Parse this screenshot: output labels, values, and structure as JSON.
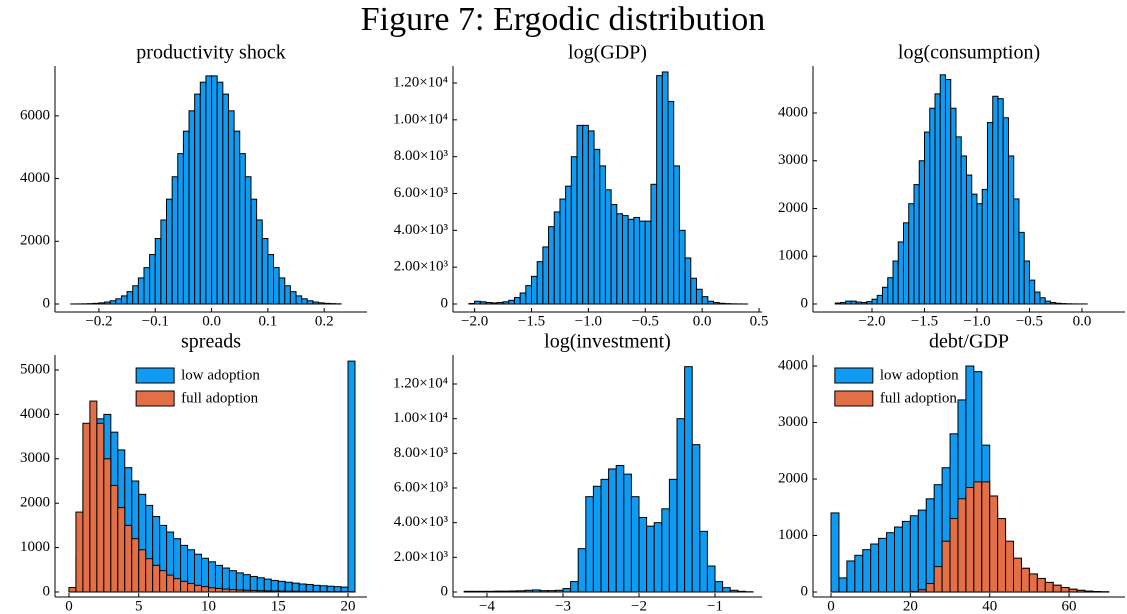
{
  "figure_title": "Figure 7: Ergodic distribution",
  "chart_data": [
    {
      "type": "histogram",
      "title": "productivity shock",
      "color": "#0f9bf2",
      "bins": [
        -0.25,
        -0.24,
        -0.23,
        -0.22,
        -0.21,
        -0.2,
        -0.19,
        -0.18,
        -0.17,
        -0.16,
        -0.15,
        -0.14,
        -0.13,
        -0.12,
        -0.11,
        -0.1,
        -0.09,
        -0.08,
        -0.07,
        -0.06,
        -0.05,
        -0.04,
        -0.03,
        -0.02,
        -0.01,
        0,
        0.01,
        0.02,
        0.03,
        0.04,
        0.05,
        0.06,
        0.07,
        0.08,
        0.09,
        0.1,
        0.11,
        0.12,
        0.13,
        0.14,
        0.15,
        0.16,
        0.17,
        0.18,
        0.19,
        0.2,
        0.21,
        0.22,
        0.23
      ],
      "values": [
        2,
        3,
        6,
        12,
        21,
        37,
        63,
        104,
        166,
        259,
        394,
        581,
        832,
        1161,
        1577,
        2088,
        2680,
        3343,
        4059,
        4796,
        5512,
        6161,
        6694,
        7074,
        7275,
        7275,
        7074,
        6694,
        6161,
        5512,
        4796,
        4059,
        3343,
        2680,
        2088,
        1577,
        1161,
        832,
        581,
        394,
        259,
        166,
        104,
        63,
        37,
        21,
        12,
        6
      ],
      "xlim": [
        -0.278,
        0.276
      ],
      "ylim": [
        -255,
        7590
      ],
      "xticks": [
        {
          "value": -0.2,
          "label": "−0.2"
        },
        {
          "value": -0.1,
          "label": "−0.1"
        },
        {
          "value": 0,
          "label": "0.0"
        },
        0.1,
        0.2
      ],
      "yticks": [
        0,
        2000,
        4000,
        6000
      ]
    },
    {
      "type": "histogram",
      "title": "log(GDP)",
      "color": "#0f9bf2",
      "bins": [
        -2.05,
        -2,
        -1.95,
        -1.9,
        -1.85,
        -1.8,
        -1.75,
        -1.7,
        -1.65,
        -1.6,
        -1.55,
        -1.5,
        -1.45,
        -1.4,
        -1.35,
        -1.3,
        -1.25,
        -1.2,
        -1.15,
        -1.1,
        -1.05,
        -1,
        -0.95,
        -0.9,
        -0.85,
        -0.8,
        -0.75,
        -0.7,
        -0.65,
        -0.6,
        -0.55,
        -0.5,
        -0.45,
        -0.4,
        -0.35,
        -0.3,
        -0.25,
        -0.2,
        -0.15,
        -0.1,
        -0.05,
        0,
        0.05,
        0.1,
        0.15,
        0.2,
        0.25,
        0.3,
        0.35,
        0.4
      ],
      "values": [
        30,
        150,
        120,
        80,
        60,
        80,
        120,
        200,
        350,
        600,
        1000,
        1500,
        2300,
        3100,
        4200,
        5000,
        5700,
        6400,
        8000,
        9700,
        9700,
        9400,
        8400,
        7500,
        6200,
        5400,
        4900,
        4800,
        4600,
        4700,
        4500,
        4500,
        6500,
        12400,
        12600,
        11000,
        7500,
        4000,
        2500,
        1400,
        800,
        400,
        150,
        80,
        40,
        20,
        10,
        5,
        2
      ],
      "xlim": [
        -2.19,
        0.526
      ],
      "ylim": [
        -434,
        12923
      ],
      "xticks": [
        {
          "value": -2,
          "label": "−2.0"
        },
        {
          "value": -1.5,
          "label": "−1.5"
        },
        {
          "value": -1,
          "label": "−1.0"
        },
        {
          "value": -0.5,
          "label": "−0.5"
        },
        {
          "value": 0,
          "label": "0.0"
        },
        0.5
      ],
      "yticks": [
        0,
        {
          "value": 2000,
          "label": "2.00×10³"
        },
        {
          "value": 4000,
          "label": "4.00×10³"
        },
        {
          "value": 6000,
          "label": "6.00×10³"
        },
        {
          "value": 8000,
          "label": "8.00×10³"
        },
        {
          "value": 10000,
          "label": "1.00×10⁴"
        },
        {
          "value": 12000,
          "label": "1.20×10⁴"
        }
      ]
    },
    {
      "type": "histogram",
      "title": "log(consumption)",
      "color": "#0f9bf2",
      "bins": [
        -2.35,
        -2.3,
        -2.25,
        -2.2,
        -2.15,
        -2.1,
        -2.05,
        -2,
        -1.95,
        -1.9,
        -1.85,
        -1.8,
        -1.75,
        -1.7,
        -1.65,
        -1.6,
        -1.55,
        -1.5,
        -1.45,
        -1.4,
        -1.35,
        -1.3,
        -1.25,
        -1.2,
        -1.15,
        -1.1,
        -1.05,
        -1,
        -0.95,
        -0.9,
        -0.85,
        -0.8,
        -0.75,
        -0.7,
        -0.65,
        -0.6,
        -0.55,
        -0.5,
        -0.45,
        -0.4,
        -0.35,
        -0.3,
        -0.25,
        -0.2,
        -0.15,
        -0.1,
        -0.05,
        0,
        0.05
      ],
      "values": [
        20,
        30,
        60,
        60,
        40,
        30,
        50,
        100,
        180,
        350,
        550,
        900,
        1300,
        1700,
        2100,
        2500,
        3000,
        3600,
        4100,
        4400,
        4800,
        4700,
        4100,
        3500,
        3100,
        2700,
        2300,
        2100,
        2400,
        3800,
        4350,
        4300,
        3900,
        3100,
        2200,
        1500,
        900,
        500,
        250,
        130,
        60,
        30,
        15,
        8,
        4,
        2,
        1,
        1
      ],
      "xlim": [
        -2.562,
        0.41
      ],
      "ylim": [
        -168,
        4984
      ],
      "xticks": [
        {
          "value": -2,
          "label": "−2.0"
        },
        {
          "value": -1.5,
          "label": "−1.5"
        },
        {
          "value": -1,
          "label": "−1.0"
        },
        {
          "value": -0.5,
          "label": "−0.5"
        },
        {
          "value": 0,
          "label": "0.0"
        }
      ],
      "yticks": [
        0,
        1000,
        2000,
        3000,
        4000
      ]
    },
    {
      "type": "histogram",
      "title": "spreads",
      "bins": [
        0,
        0.5,
        1,
        1.5,
        2,
        2.5,
        3,
        3.5,
        4,
        4.5,
        5,
        5.5,
        6,
        6.5,
        7,
        7.5,
        8,
        8.5,
        9,
        9.5,
        10,
        10.5,
        11,
        11.5,
        12,
        12.5,
        13,
        13.5,
        14,
        14.5,
        15,
        15.5,
        16,
        16.5,
        17,
        17.5,
        18,
        18.5,
        19,
        19.5,
        20,
        20.5
      ],
      "series": [
        {
          "name": "low adoption",
          "color": "#0f9bf2",
          "values": [
            50,
            800,
            2500,
            3500,
            3900,
            4000,
            3600,
            3200,
            2800,
            2500,
            2200,
            1950,
            1700,
            1500,
            1350,
            1200,
            1050,
            950,
            850,
            760,
            680,
            600,
            540,
            480,
            430,
            390,
            350,
            320,
            290,
            260,
            240,
            220,
            200,
            180,
            170,
            150,
            140,
            130,
            120,
            110,
            5200
          ]
        },
        {
          "name": "full adoption",
          "color": "#e36f47",
          "values": [
            100,
            1800,
            3800,
            4300,
            3800,
            3000,
            2400,
            1900,
            1500,
            1200,
            950,
            750,
            600,
            480,
            380,
            300,
            240,
            190,
            150,
            120,
            95,
            80,
            65,
            55,
            45,
            40,
            35,
            30,
            25,
            22,
            20,
            18,
            16,
            14,
            12,
            10,
            9,
            8,
            7,
            6,
            5
          ]
        }
      ],
      "legend": "top-center",
      "xlim": [
        -1,
        21.36
      ],
      "ylim": [
        -113,
        5338
      ],
      "xticks": [
        0,
        5,
        10,
        15,
        20
      ],
      "yticks": [
        0,
        1000,
        2000,
        3000,
        4000,
        5000
      ]
    },
    {
      "type": "histogram",
      "title": "log(investment)",
      "color": "#0f9bf2",
      "bins": [
        -4.3,
        -4.2,
        -4.1,
        -4,
        -3.9,
        -3.8,
        -3.7,
        -3.6,
        -3.5,
        -3.4,
        -3.3,
        -3.2,
        -3.1,
        -3,
        -2.9,
        -2.8,
        -2.7,
        -2.6,
        -2.5,
        -2.4,
        -2.3,
        -2.2,
        -2.1,
        -2,
        -1.9,
        -1.8,
        -1.7,
        -1.6,
        -1.5,
        -1.4,
        -1.3,
        -1.2,
        -1.1,
        -1,
        -0.9,
        -0.8,
        -0.7,
        -0.6,
        -0.5
      ],
      "values": [
        40,
        40,
        40,
        40,
        50,
        50,
        60,
        70,
        100,
        120,
        80,
        80,
        100,
        200,
        600,
        2500,
        5500,
        6100,
        6500,
        7100,
        7300,
        6800,
        5500,
        4300,
        3800,
        4000,
        4800,
        6500,
        10000,
        13000,
        8500,
        3500,
        1500,
        600,
        250,
        100,
        40,
        15
      ],
      "xlim": [
        -4.447,
        -0.382
      ],
      "ylim": [
        -288,
        13673
      ],
      "xticks": [
        {
          "value": -4,
          "label": "−4"
        },
        {
          "value": -3,
          "label": "−3"
        },
        {
          "value": -2,
          "label": "−2"
        },
        {
          "value": -1,
          "label": "−1"
        }
      ],
      "yticks": [
        0,
        {
          "value": 2000,
          "label": "2.00×10³"
        },
        {
          "value": 4000,
          "label": "4.00×10³"
        },
        {
          "value": 6000,
          "label": "6.00×10³"
        },
        {
          "value": 8000,
          "label": "8.00×10³"
        },
        {
          "value": 10000,
          "label": "1.00×10⁴"
        },
        {
          "value": 12000,
          "label": "1.20×10⁴"
        }
      ]
    },
    {
      "type": "histogram",
      "title": "debt/GDP",
      "bins": [
        0,
        2,
        4,
        6,
        8,
        10,
        12,
        14,
        16,
        18,
        20,
        22,
        24,
        26,
        28,
        30,
        32,
        34,
        36,
        38,
        40,
        42,
        44,
        46,
        48,
        50,
        52,
        54,
        56,
        58,
        60,
        62,
        64,
        66,
        68,
        70
      ],
      "series": [
        {
          "name": "low adoption",
          "color": "#0f9bf2",
          "values": [
            1400,
            250,
            550,
            650,
            750,
            850,
            950,
            1050,
            1150,
            1250,
            1350,
            1450,
            1650,
            1900,
            2200,
            2800,
            3400,
            4000,
            3900,
            2600,
            1500,
            1000,
            750,
            550,
            420,
            320,
            240,
            170,
            120,
            80,
            50,
            30,
            15,
            8,
            4
          ]
        },
        {
          "name": "full adoption",
          "color": "#e36f47",
          "values": [
            0,
            0,
            0,
            0,
            0,
            0,
            0,
            0,
            0,
            2,
            10,
            40,
            150,
            450,
            900,
            1300,
            1650,
            1850,
            1950,
            1950,
            1700,
            1300,
            900,
            600,
            420,
            320,
            240,
            170,
            120,
            80,
            50,
            30,
            15,
            8,
            4
          ]
        }
      ],
      "legend": "top-left",
      "xlim": [
        -4.54,
        74.1
      ],
      "ylim": [
        -88,
        4195
      ],
      "xticks": [
        0,
        20,
        40,
        60
      ],
      "yticks": [
        0,
        1000,
        2000,
        3000,
        4000
      ]
    }
  ]
}
